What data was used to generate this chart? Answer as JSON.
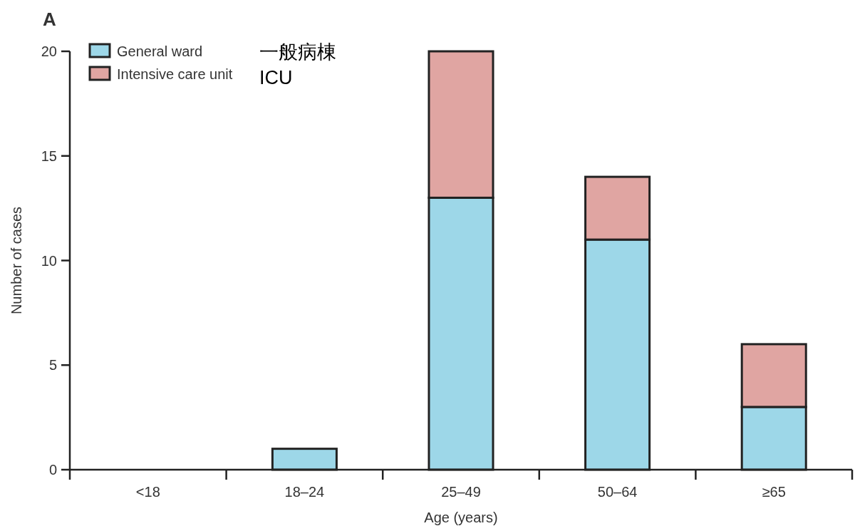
{
  "chart_data": {
    "type": "bar",
    "title": "A",
    "xlabel": "Age (years)",
    "ylabel": "Number of cases",
    "categories": [
      "<18",
      "18–24",
      "25–49",
      "50–64",
      "≥65"
    ],
    "stacked": true,
    "series": [
      {
        "name": "General ward",
        "color": "#9dd7e8",
        "values": [
          0,
          1,
          13,
          11,
          3
        ]
      },
      {
        "name": "Intensive care unit",
        "color": "#e0a5a2",
        "values": [
          0,
          0,
          7,
          3,
          3
        ]
      }
    ],
    "ylim": [
      0,
      20
    ],
    "yticks": [
      0,
      5,
      10,
      15,
      20
    ],
    "legend": "top left",
    "annotations": [
      "一般病棟",
      "ICU"
    ]
  }
}
